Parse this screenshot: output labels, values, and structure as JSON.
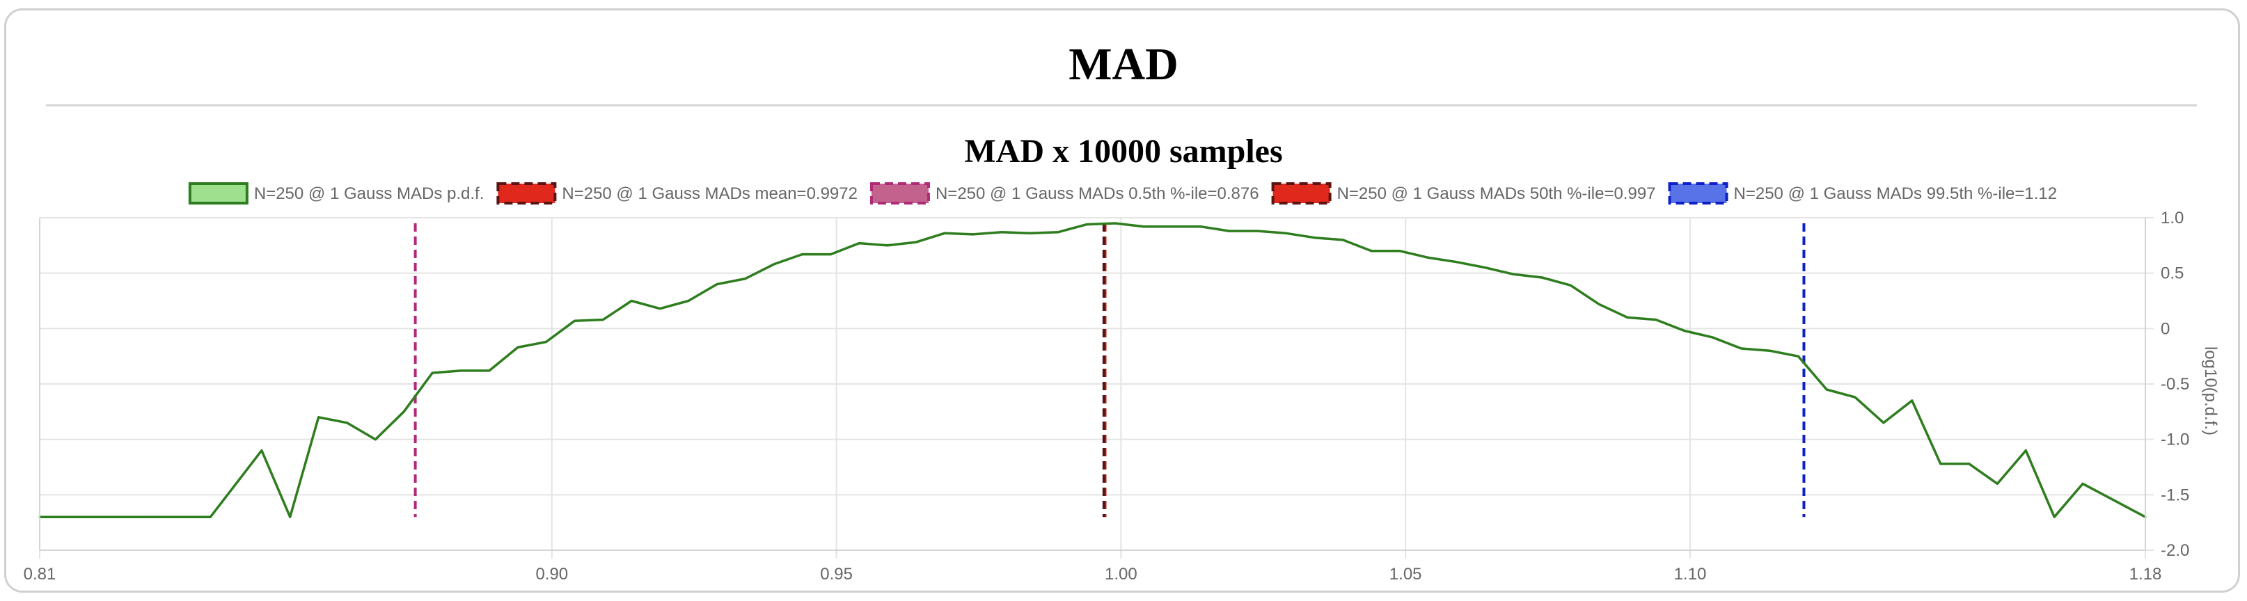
{
  "page": {
    "title": "MAD"
  },
  "chart_data": {
    "type": "line",
    "title": "MAD x 10000 samples",
    "xlabel": "",
    "ylabel": "log10(p.d.f.)",
    "xlim": [
      0.81,
      1.18
    ],
    "ylim": [
      -2.0,
      1.0
    ],
    "xticks": [
      0.81,
      0.9,
      0.95,
      1.0,
      1.05,
      1.1,
      1.18
    ],
    "xtick_labels": [
      "0.81",
      "0.90",
      "0.95",
      "1.00",
      "1.05",
      "1.10",
      "1.18"
    ],
    "yticks": [
      1.0,
      0.5,
      0,
      -0.5,
      -1.0,
      -1.5,
      -2.0
    ],
    "ytick_labels": [
      "1.0",
      "0.5",
      "0",
      "-0.5",
      "-1.0",
      "-1.5",
      "-2.0"
    ],
    "grid": true,
    "legend_position": "top",
    "series": [
      {
        "name": "N=250 @ 1 Gauss MADs p.d.f.",
        "kind": "line",
        "color": "#2e7d1e",
        "legend_fill": "#9ee08e",
        "x": [
          0.81,
          0.82,
          0.83,
          0.84,
          0.849,
          0.854,
          0.859,
          0.864,
          0.869,
          0.874,
          0.879,
          0.884,
          0.889,
          0.894,
          0.899,
          0.904,
          0.909,
          0.914,
          0.919,
          0.924,
          0.929,
          0.934,
          0.939,
          0.944,
          0.949,
          0.954,
          0.959,
          0.964,
          0.969,
          0.974,
          0.979,
          0.984,
          0.989,
          0.994,
          0.999,
          1.004,
          1.009,
          1.014,
          1.019,
          1.024,
          1.029,
          1.034,
          1.039,
          1.044,
          1.049,
          1.054,
          1.059,
          1.064,
          1.069,
          1.074,
          1.079,
          1.084,
          1.089,
          1.094,
          1.099,
          1.104,
          1.109,
          1.114,
          1.119,
          1.124,
          1.129,
          1.134,
          1.139,
          1.144,
          1.149,
          1.154,
          1.159,
          1.164,
          1.169,
          1.18
        ],
        "y": [
          -1.7,
          -1.7,
          -1.7,
          -1.7,
          -1.1,
          -1.7,
          -0.8,
          -0.85,
          -1.0,
          -0.75,
          -0.4,
          -0.38,
          -0.38,
          -0.17,
          -0.12,
          0.07,
          0.08,
          0.25,
          0.18,
          0.25,
          0.4,
          0.45,
          0.58,
          0.67,
          0.67,
          0.77,
          0.75,
          0.78,
          0.86,
          0.85,
          0.87,
          0.86,
          0.87,
          0.94,
          0.95,
          0.92,
          0.92,
          0.92,
          0.88,
          0.88,
          0.86,
          0.82,
          0.8,
          0.7,
          0.7,
          0.64,
          0.6,
          0.55,
          0.49,
          0.46,
          0.39,
          0.22,
          0.1,
          0.08,
          -0.02,
          -0.08,
          -0.18,
          -0.2,
          -0.25,
          -0.55,
          -0.62,
          -0.85,
          -0.65,
          -1.22,
          -1.22,
          -1.4,
          -1.1,
          -1.7,
          -1.4,
          -1.7
        ]
      },
      {
        "name": "N=250 @ 1 Gauss MADs mean=0.9972",
        "kind": "vline",
        "x": 0.9972,
        "y_range": [
          -1.7,
          0.95
        ],
        "color": "#c41a0e",
        "legend_fill": "#e0281c"
      },
      {
        "name": "N=250 @ 1 Gauss MADs 0.5th %-ile=0.876",
        "kind": "vline",
        "x": 0.876,
        "y_range": [
          -1.7,
          0.95
        ],
        "color": "#b02a78",
        "legend_fill": "#c4628e"
      },
      {
        "name": "N=250 @ 1 Gauss MADs 50th %-ile=0.997",
        "kind": "vline",
        "x": 0.997,
        "y_range": [
          -1.7,
          0.95
        ],
        "color": "#5a1414",
        "legend_fill": "#e0281c"
      },
      {
        "name": "N=250 @ 1 Gauss MADs 99.5th %-ile=1.12",
        "kind": "vline",
        "x": 1.12,
        "y_range": [
          -1.7,
          0.95
        ],
        "color": "#1020c8",
        "legend_fill": "#5872e8"
      }
    ]
  }
}
